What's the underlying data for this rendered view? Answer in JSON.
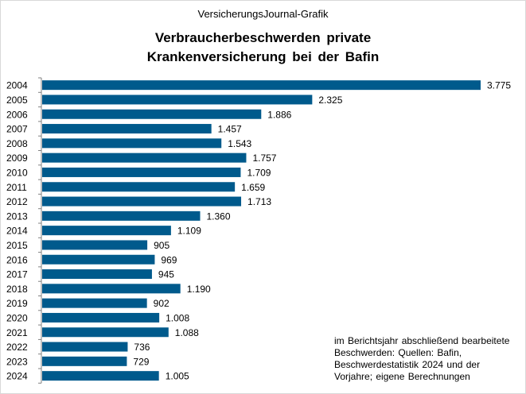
{
  "chart_data": {
    "type": "bar",
    "orientation": "horizontal",
    "header": "VersicherungsJournal-Grafik",
    "title_lines": [
      "Verbraucherbeschwerden private",
      "Krankenversicherung bei der Bafin"
    ],
    "categories": [
      "2004",
      "2005",
      "2006",
      "2007",
      "2008",
      "2009",
      "2010",
      "2011",
      "2012",
      "2013",
      "2014",
      "2015",
      "2016",
      "2017",
      "2018",
      "2019",
      "2020",
      "2021",
      "2022",
      "2023",
      "2024"
    ],
    "values": [
      3775,
      2325,
      1886,
      1457,
      1543,
      1757,
      1709,
      1659,
      1713,
      1360,
      1109,
      905,
      969,
      945,
      1190,
      902,
      1008,
      1088,
      736,
      729,
      1005
    ],
    "value_labels": [
      "3.775",
      "2.325",
      "1.886",
      "1.457",
      "1.543",
      "1.757",
      "1.709",
      "1.659",
      "1.713",
      "1.360",
      "1.109",
      "905",
      "969",
      "945",
      "1.190",
      "902",
      "1.008",
      "1.088",
      "736",
      "729",
      "1.005"
    ],
    "xlim": [
      0,
      3775
    ],
    "bar_color": "#005a8c",
    "axis_color": "#808080",
    "legend": "none",
    "grid": false,
    "source_note": "im Berichtsjahr abschließend bearbeitete Beschwerden: Quellen: Bafin, Beschwerdestatistik 2024 und der Vorjahre; eigene Berechnungen"
  }
}
